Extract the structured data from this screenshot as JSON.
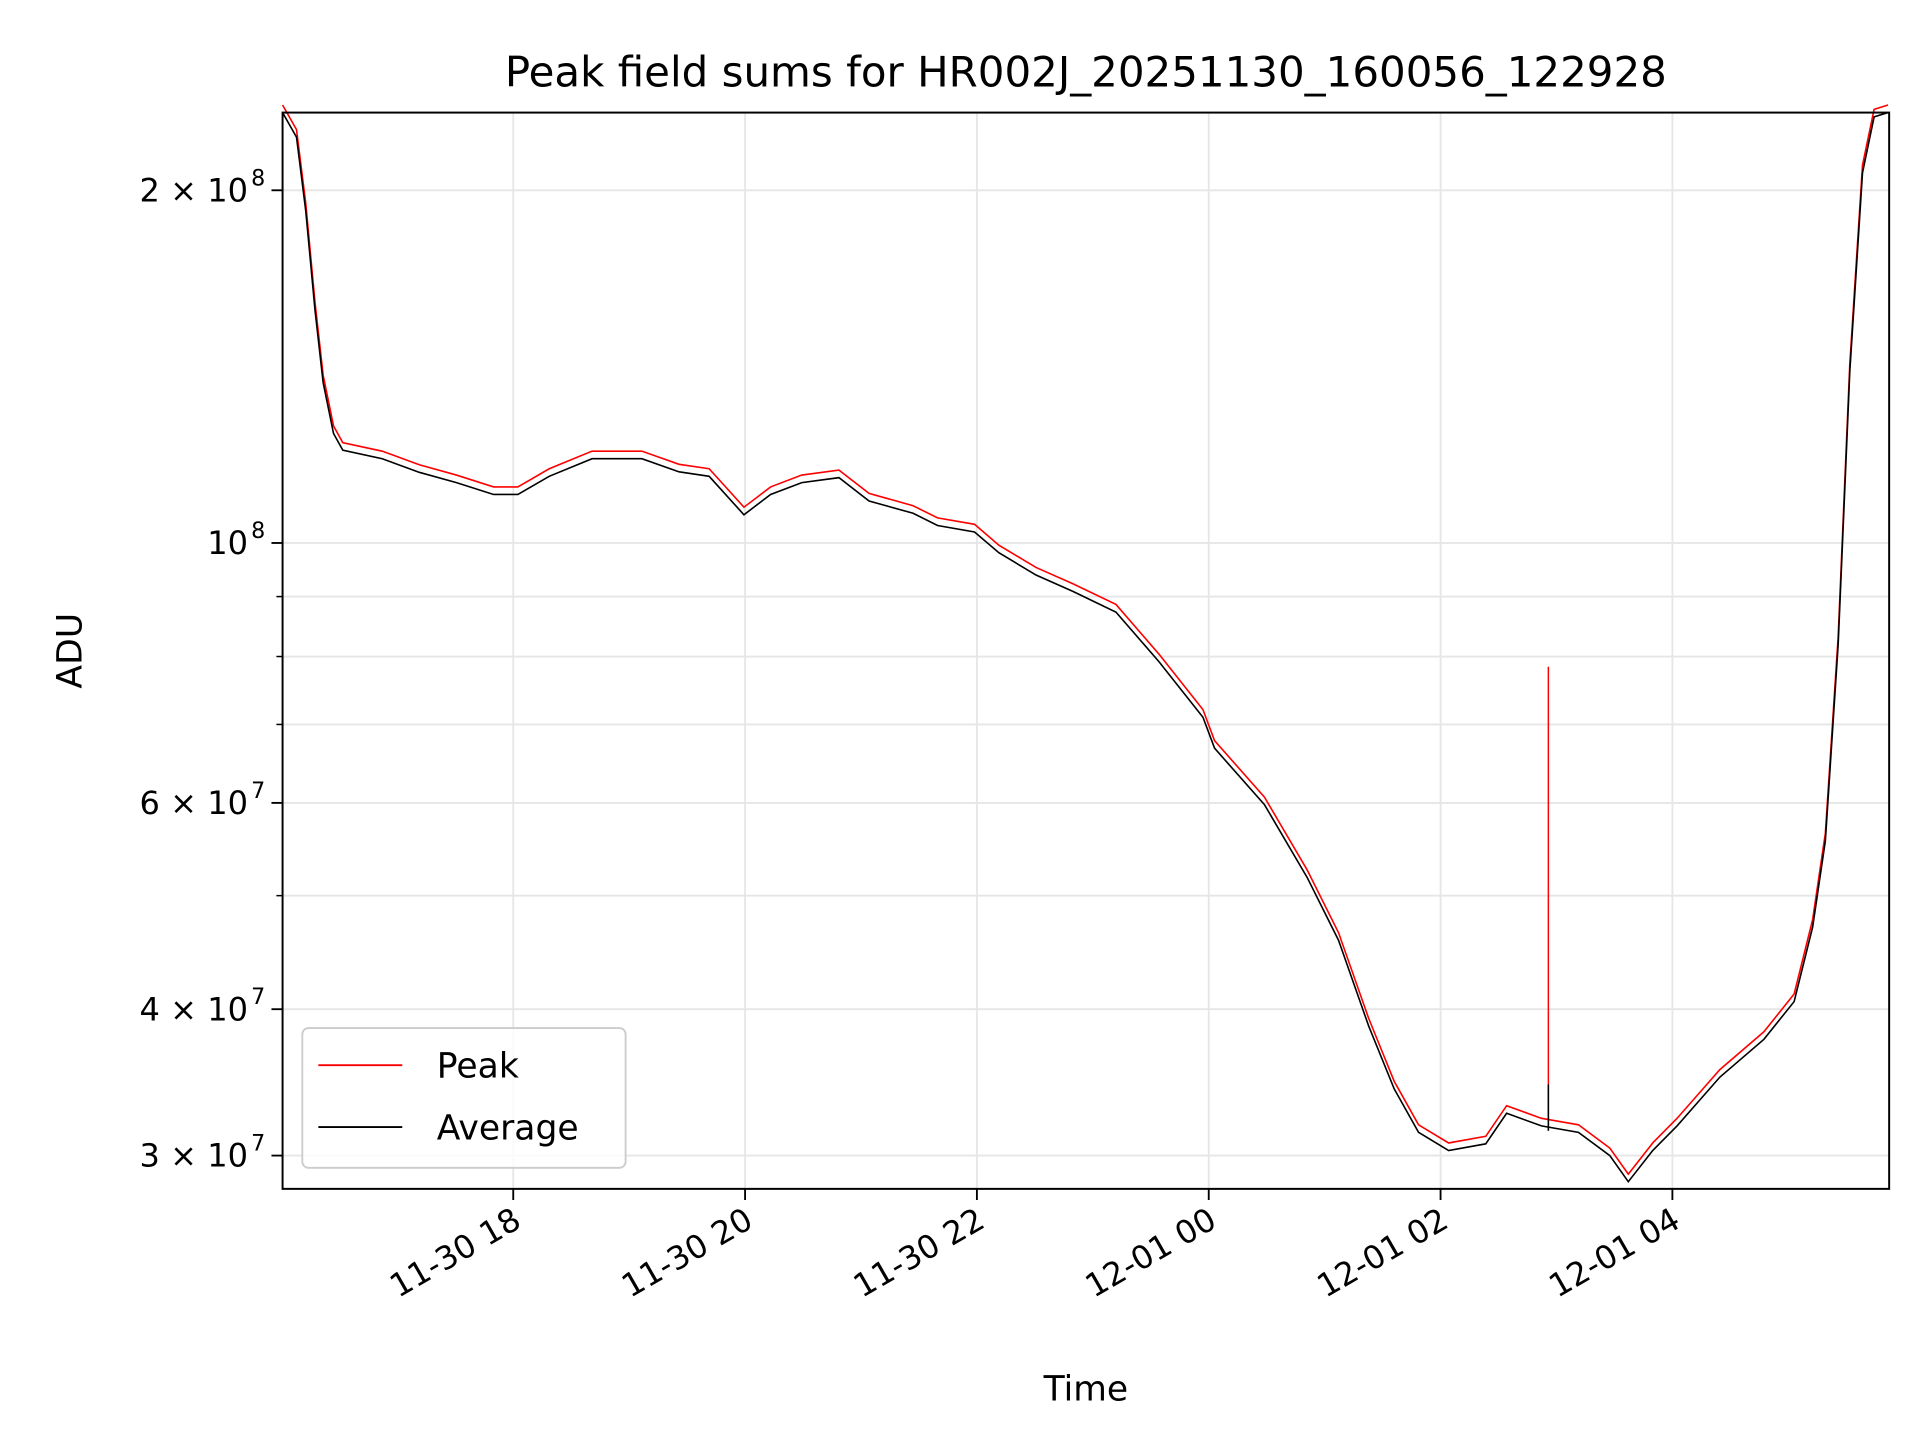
{
  "chart_data": {
    "type": "line",
    "title": "Peak field sums for HR002J_20251130_160056_122928",
    "xlabel": "Time",
    "ylabel": "ADU",
    "x_units": "hours since 2025-11-30 00:00",
    "xlim": [
      16.01,
      29.87
    ],
    "ylim": [
      28100000,
      233000000
    ],
    "yscale": "log",
    "grid": true,
    "legend_placement": "lower-left",
    "x_ticks": [
      {
        "value": 18,
        "label": "11-30 18"
      },
      {
        "value": 20,
        "label": "11-30 20"
      },
      {
        "value": 22,
        "label": "11-30 22"
      },
      {
        "value": 24,
        "label": "12-01 00"
      },
      {
        "value": 26,
        "label": "12-01 02"
      },
      {
        "value": 28,
        "label": "12-01 04"
      }
    ],
    "y_ticks": [
      {
        "value": 30000000,
        "base": "3 × 10",
        "exp": "7"
      },
      {
        "value": 40000000,
        "base": "4 × 10",
        "exp": "7"
      },
      {
        "value": 60000000,
        "base": "6 × 10",
        "exp": "7"
      },
      {
        "value": 100000000,
        "base": "10",
        "exp": "8"
      },
      {
        "value": 200000000,
        "base": "2 × 10",
        "exp": "8"
      }
    ],
    "y_minor_ticks": [
      50000000,
      70000000,
      80000000,
      90000000
    ],
    "series": [
      {
        "name": "Peak",
        "color": "#ff0000",
        "ratio_to_average": 1.015,
        "spike": {
          "x": 26.93,
          "y": 78400000
        }
      },
      {
        "name": "Average",
        "color": "#000000",
        "x": [
          16.01,
          16.13,
          16.21,
          16.29,
          16.36,
          16.45,
          16.53,
          16.87,
          17.19,
          17.51,
          17.83,
          18.04,
          18.31,
          18.68,
          19.11,
          19.43,
          19.69,
          19.99,
          20.22,
          20.49,
          20.81,
          21.07,
          21.45,
          21.66,
          21.98,
          22.19,
          22.51,
          22.83,
          23.2,
          23.57,
          23.95,
          24.05,
          24.48,
          24.85,
          25.12,
          25.38,
          25.6,
          25.81,
          26.07,
          26.39,
          26.57,
          26.87,
          27.19,
          27.46,
          27.62,
          27.83,
          28.04,
          28.41,
          28.79,
          29.05,
          29.21,
          29.32,
          29.43,
          29.53,
          29.64,
          29.74,
          29.86
        ],
        "y": [
          233000000,
          222000000,
          192000000,
          158000000,
          137000000,
          124000000,
          120000000,
          118000000,
          114900000,
          112600000,
          110000000,
          110000000,
          114000000,
          118000000,
          118000000,
          115000000,
          114000000,
          105700000,
          110000000,
          112600000,
          113700000,
          108600000,
          106000000,
          103500000,
          102200000,
          98100000,
          93900000,
          90900000,
          87300000,
          79200000,
          71000000,
          66800000,
          59800000,
          51800000,
          45800000,
          38700000,
          34200000,
          31400000,
          30300000,
          30700000,
          32600000,
          31800000,
          31400000,
          30000000,
          28500000,
          30300000,
          31800000,
          35000000,
          37700000,
          40600000,
          47000000,
          55700000,
          82000000,
          140000000,
          207000000,
          231000000,
          233000000
        ]
      }
    ]
  }
}
